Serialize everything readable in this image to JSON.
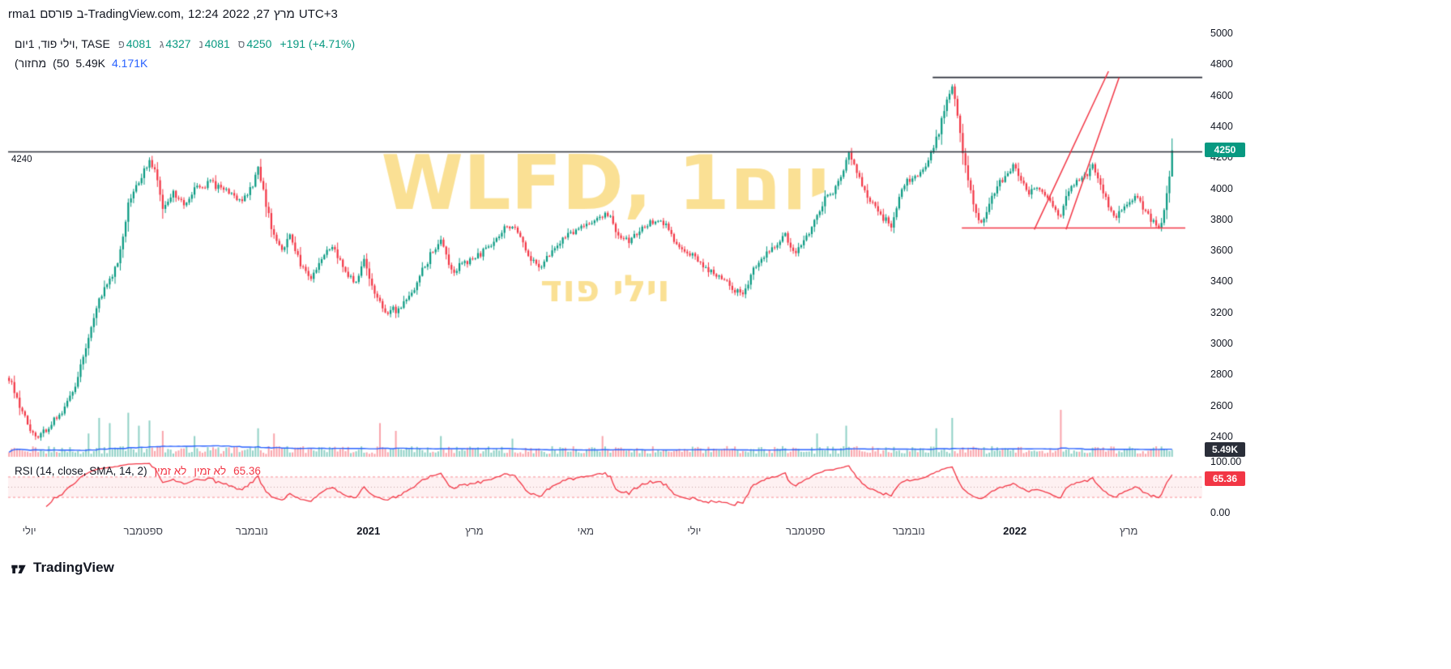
{
  "header": {
    "tokens": [
      "rma1",
      "פורסם",
      "ב-TradingView.com,",
      "12:24",
      "2022 ,27",
      "מרץ",
      "UTC+3"
    ]
  },
  "legend": {
    "symbol": "וילי פוד, 1יום, TASE",
    "ohlc": [
      {
        "k": "פ",
        "v": "4081"
      },
      {
        "k": "ג",
        "v": "4327"
      },
      {
        "k": "נ",
        "v": "4081"
      },
      {
        "k": "ס",
        "v": "4250"
      }
    ],
    "change": "+191 (+4.71%)",
    "volume_row": {
      "tok1": "(מחזור",
      "tok2": "(50",
      "value": "5.49K",
      "ma": "4.171K"
    }
  },
  "rsi_legend": {
    "label": "RSI (14, close, SMA, 14, 2)",
    "na1": "לא זמין",
    "na2": "לא זמין",
    "value": "65.36"
  },
  "watermark": {
    "line1": "WLFD, 1יום",
    "line2": "וילי פוד",
    "color": "rgba(246,204,76,0.6)"
  },
  "price_axis": {
    "ticks": [
      5000,
      4800,
      4600,
      4400,
      4200,
      4000,
      3800,
      3600,
      3400,
      3200,
      3000,
      2800,
      2600,
      2400
    ],
    "left_label": "4240"
  },
  "rsi_axis": {
    "top": "100.00",
    "bottom": "0.00"
  },
  "time_axis": [
    {
      "label": "יולי",
      "i": 8
    },
    {
      "label": "ספטמבר",
      "i": 51
    },
    {
      "label": "נובמבר",
      "i": 92
    },
    {
      "label": "2021",
      "i": 136,
      "major": true
    },
    {
      "label": "מרץ",
      "i": 176
    },
    {
      "label": "מאי",
      "i": 218
    },
    {
      "label": "יולי",
      "i": 259
    },
    {
      "label": "ספטמבר",
      "i": 301
    },
    {
      "label": "נובמבר",
      "i": 340
    },
    {
      "label": "2022",
      "i": 380,
      "major": true
    },
    {
      "label": "מרץ",
      "i": 423
    }
  ],
  "badges": {
    "price": {
      "text": "4250",
      "color": "#089981"
    },
    "volume": {
      "text": "5.49K",
      "color": "#2a2e39"
    },
    "rsi": {
      "text": "65.36",
      "color": "#f23645"
    }
  },
  "footer": {
    "brand": "TradingView"
  },
  "chart_data": {
    "type": "candlestick",
    "symbol": "WLFD",
    "name": "וילי פוד",
    "exchange": "TASE",
    "interval": "1יום",
    "n": 440,
    "price_range": {
      "min": 2400,
      "max": 5000
    },
    "last_candle": {
      "open": 4081,
      "high": 4327,
      "low": 4081,
      "close": 4250,
      "change": 191,
      "change_pct": 4.71
    },
    "close_anchors": [
      [
        0,
        2780
      ],
      [
        6,
        2520
      ],
      [
        10,
        2400
      ],
      [
        14,
        2440
      ],
      [
        18,
        2530
      ],
      [
        22,
        2620
      ],
      [
        26,
        2790
      ],
      [
        30,
        3060
      ],
      [
        34,
        3300
      ],
      [
        38,
        3430
      ],
      [
        41,
        3520
      ],
      [
        45,
        3900
      ],
      [
        49,
        4060
      ],
      [
        53,
        4180
      ],
      [
        55,
        4120
      ],
      [
        58,
        3870
      ],
      [
        62,
        3980
      ],
      [
        66,
        3900
      ],
      [
        70,
        4000
      ],
      [
        76,
        4040
      ],
      [
        82,
        3990
      ],
      [
        88,
        3930
      ],
      [
        92,
        4010
      ],
      [
        94,
        4150
      ],
      [
        97,
        3900
      ],
      [
        100,
        3700
      ],
      [
        103,
        3620
      ],
      [
        106,
        3700
      ],
      [
        110,
        3520
      ],
      [
        114,
        3420
      ],
      [
        118,
        3560
      ],
      [
        122,
        3640
      ],
      [
        127,
        3460
      ],
      [
        131,
        3400
      ],
      [
        134,
        3540
      ],
      [
        138,
        3330
      ],
      [
        142,
        3210
      ],
      [
        147,
        3230
      ],
      [
        151,
        3300
      ],
      [
        155,
        3450
      ],
      [
        159,
        3570
      ],
      [
        163,
        3680
      ],
      [
        167,
        3470
      ],
      [
        171,
        3520
      ],
      [
        176,
        3560
      ],
      [
        181,
        3620
      ],
      [
        186,
        3740
      ],
      [
        189,
        3770
      ],
      [
        193,
        3680
      ],
      [
        197,
        3540
      ],
      [
        201,
        3500
      ],
      [
        205,
        3600
      ],
      [
        209,
        3680
      ],
      [
        213,
        3720
      ],
      [
        218,
        3760
      ],
      [
        222,
        3820
      ],
      [
        226,
        3840
      ],
      [
        230,
        3700
      ],
      [
        234,
        3660
      ],
      [
        238,
        3740
      ],
      [
        242,
        3780
      ],
      [
        246,
        3810
      ],
      [
        250,
        3700
      ],
      [
        254,
        3610
      ],
      [
        258,
        3580
      ],
      [
        262,
        3500
      ],
      [
        266,
        3460
      ],
      [
        270,
        3410
      ],
      [
        274,
        3360
      ],
      [
        277,
        3310
      ],
      [
        281,
        3480
      ],
      [
        285,
        3570
      ],
      [
        289,
        3630
      ],
      [
        293,
        3700
      ],
      [
        296,
        3580
      ],
      [
        299,
        3650
      ],
      [
        302,
        3720
      ],
      [
        305,
        3820
      ],
      [
        308,
        3930
      ],
      [
        311,
        3990
      ],
      [
        314,
        4090
      ],
      [
        317,
        4230
      ],
      [
        320,
        4100
      ],
      [
        323,
        3990
      ],
      [
        327,
        3880
      ],
      [
        330,
        3820
      ],
      [
        333,
        3760
      ],
      [
        336,
        3950
      ],
      [
        339,
        4050
      ],
      [
        342,
        4080
      ],
      [
        345,
        4130
      ],
      [
        348,
        4220
      ],
      [
        351,
        4380
      ],
      [
        354,
        4560
      ],
      [
        356,
        4650
      ],
      [
        358,
        4480
      ],
      [
        360,
        4250
      ],
      [
        362,
        4050
      ],
      [
        364,
        3920
      ],
      [
        367,
        3760
      ],
      [
        370,
        3900
      ],
      [
        373,
        4020
      ],
      [
        376,
        4080
      ],
      [
        379,
        4170
      ],
      [
        382,
        4060
      ],
      [
        385,
        3980
      ],
      [
        388,
        4020
      ],
      [
        391,
        3960
      ],
      [
        394,
        3880
      ],
      [
        397,
        3820
      ],
      [
        400,
        3990
      ],
      [
        403,
        4060
      ],
      [
        406,
        4090
      ],
      [
        409,
        4140
      ],
      [
        412,
        4020
      ],
      [
        415,
        3900
      ],
      [
        418,
        3820
      ],
      [
        420,
        3870
      ],
      [
        423,
        3930
      ],
      [
        426,
        3960
      ],
      [
        429,
        3840
      ],
      [
        432,
        3790
      ],
      [
        434,
        3760
      ],
      [
        436,
        3850
      ],
      [
        438,
        4081
      ],
      [
        439,
        4250
      ]
    ],
    "volume": {
      "last": "5.49K",
      "ma": "4.171K",
      "ma_len": 50,
      "base": 5,
      "spikes": [
        [
          30,
          18
        ],
        [
          34,
          30
        ],
        [
          38,
          26
        ],
        [
          45,
          34
        ],
        [
          49,
          24
        ],
        [
          53,
          28
        ],
        [
          58,
          20
        ],
        [
          70,
          16
        ],
        [
          94,
          22
        ],
        [
          100,
          18
        ],
        [
          140,
          26
        ],
        [
          146,
          20
        ],
        [
          163,
          16
        ],
        [
          190,
          14
        ],
        [
          224,
          16
        ],
        [
          305,
          18
        ],
        [
          316,
          24
        ],
        [
          350,
          22
        ],
        [
          356,
          30
        ],
        [
          397,
          42
        ],
        [
          439,
          5.5
        ]
      ]
    },
    "rsi": {
      "length": 14,
      "smoothing": "SMA",
      "smoothing_len": 14,
      "value": 65.36,
      "upper": 70,
      "lower": 30,
      "mid": 50
    },
    "overlays": {
      "hlines": [
        {
          "price": 4240,
          "from": 0,
          "to": 460,
          "color": "#2a2e39",
          "label": "4240"
        },
        {
          "price": 4720,
          "from": 349,
          "to": 460,
          "color": "#2a2e39"
        },
        {
          "price": 3750,
          "from": 360,
          "to": 444,
          "color": "#f23645"
        }
      ],
      "trendlines": [
        {
          "from": [
            387,
            3740
          ],
          "to": [
            415,
            4760
          ],
          "color": "#f23645"
        },
        {
          "from": [
            399,
            3740
          ],
          "to": [
            419,
            4720
          ],
          "color": "#f23645"
        }
      ]
    },
    "colors": {
      "up": "#089981",
      "down": "#f23645",
      "volume_ma": "#2962ff",
      "rsi_line": "#f23645"
    }
  }
}
